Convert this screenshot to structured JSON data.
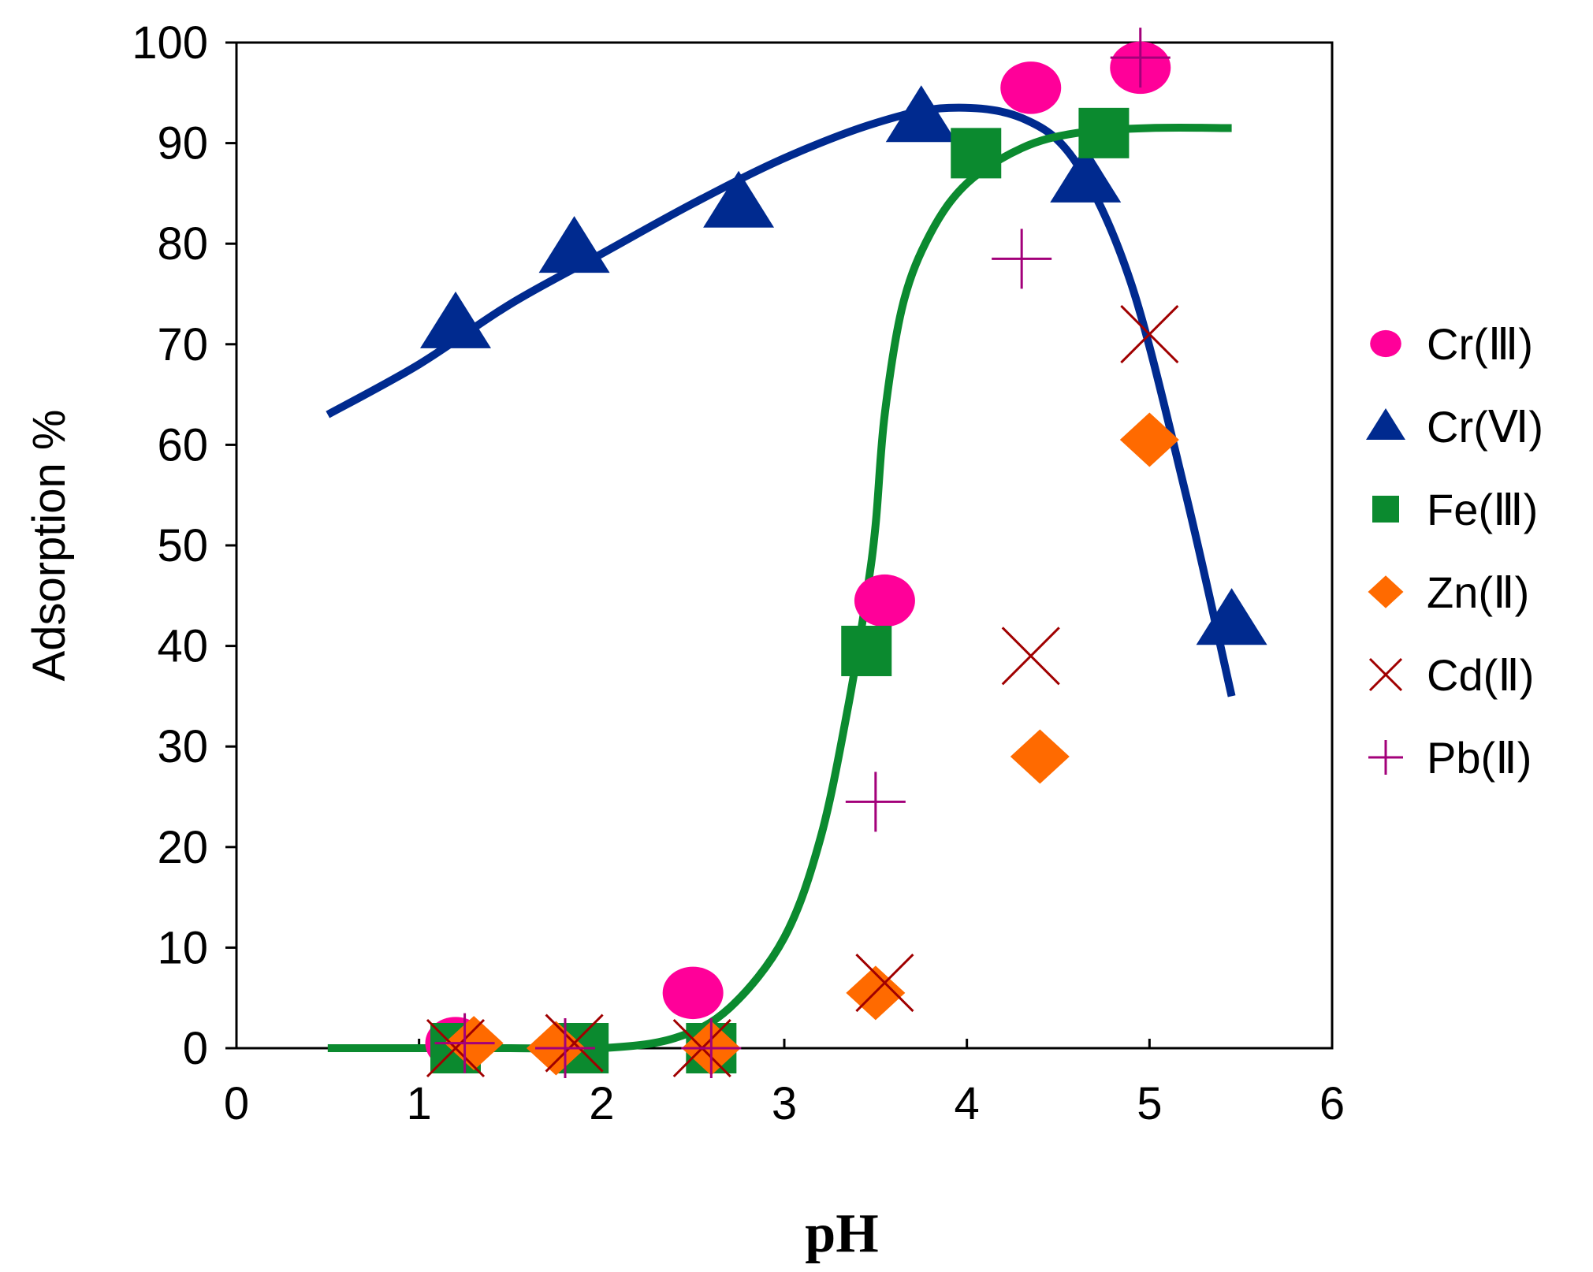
{
  "chart_data": {
    "type": "scatter",
    "title": "",
    "xlabel": "pH",
    "ylabel": "Adsorption %",
    "xlim": [
      0,
      6
    ],
    "ylim": [
      0,
      100
    ],
    "xticks": [
      "0",
      "1",
      "2",
      "3",
      "4",
      "5",
      "6"
    ],
    "yticks": [
      "0",
      "10",
      "20",
      "30",
      "40",
      "50",
      "60",
      "70",
      "80",
      "90",
      "100"
    ],
    "grid": false,
    "legend_position": "right",
    "series": [
      {
        "name": "Cr(Ⅲ)",
        "marker": "circle",
        "color": "#ff0099",
        "x": [
          1.2,
          2.5,
          3.55,
          4.35,
          4.95
        ],
        "y": [
          0.5,
          5.5,
          44.5,
          95.5,
          97.5
        ]
      },
      {
        "name": "Cr(Ⅵ)",
        "marker": "triangle",
        "color": "#002a8f",
        "x": [
          1.2,
          1.85,
          2.75,
          3.75,
          4.65,
          5.45
        ],
        "y": [
          72,
          79.5,
          84,
          92.5,
          86.5,
          42.5
        ]
      },
      {
        "name": "Fe(Ⅲ)",
        "marker": "square",
        "color": "#0b8a2f",
        "x": [
          1.2,
          1.9,
          2.6,
          3.45,
          4.05,
          4.75
        ],
        "y": [
          0,
          0,
          0,
          39.5,
          89,
          91
        ]
      },
      {
        "name": "Zn(Ⅱ)",
        "marker": "diamond",
        "color": "#ff6a00",
        "x": [
          1.3,
          1.75,
          2.6,
          3.5,
          4.4,
          5.0
        ],
        "y": [
          0.5,
          0,
          0,
          5.5,
          29,
          60.5
        ]
      },
      {
        "name": "Cd(Ⅱ)",
        "marker": "x",
        "color": "#a00000",
        "x": [
          1.2,
          1.85,
          2.55,
          3.55,
          4.35,
          5.0
        ],
        "y": [
          0,
          0.5,
          0,
          6.5,
          39,
          71
        ]
      },
      {
        "name": "Pb(Ⅱ)",
        "marker": "plus",
        "color": "#a3007a",
        "x": [
          1.25,
          1.8,
          2.6,
          3.5,
          4.3,
          4.95
        ],
        "y": [
          0.5,
          0,
          0,
          24.5,
          78.5,
          98.5
        ]
      }
    ],
    "fit_curves": [
      {
        "name": "Cr(Ⅵ) fit",
        "color": "#002a8f",
        "x": [
          0.5,
          1.0,
          1.5,
          2.0,
          2.5,
          3.0,
          3.5,
          3.9,
          4.3,
          4.6,
          4.9,
          5.2,
          5.45
        ],
        "y": [
          63,
          68,
          74,
          79,
          84,
          88.5,
          92,
          93.5,
          92.5,
          88,
          76,
          55,
          35
        ]
      },
      {
        "name": "Fe(Ⅲ) fit",
        "color": "#0b8a2f",
        "x": [
          0.5,
          1.0,
          1.5,
          2.0,
          2.4,
          2.7,
          3.0,
          3.2,
          3.35,
          3.45,
          3.5,
          3.55,
          3.65,
          3.8,
          4.0,
          4.3,
          4.6,
          5.0,
          5.45
        ],
        "y": [
          0,
          0,
          0,
          0,
          1,
          4,
          11,
          21,
          34,
          45,
          52,
          63,
          74,
          81,
          86,
          89.5,
          91,
          91.5,
          91.5
        ]
      }
    ]
  }
}
